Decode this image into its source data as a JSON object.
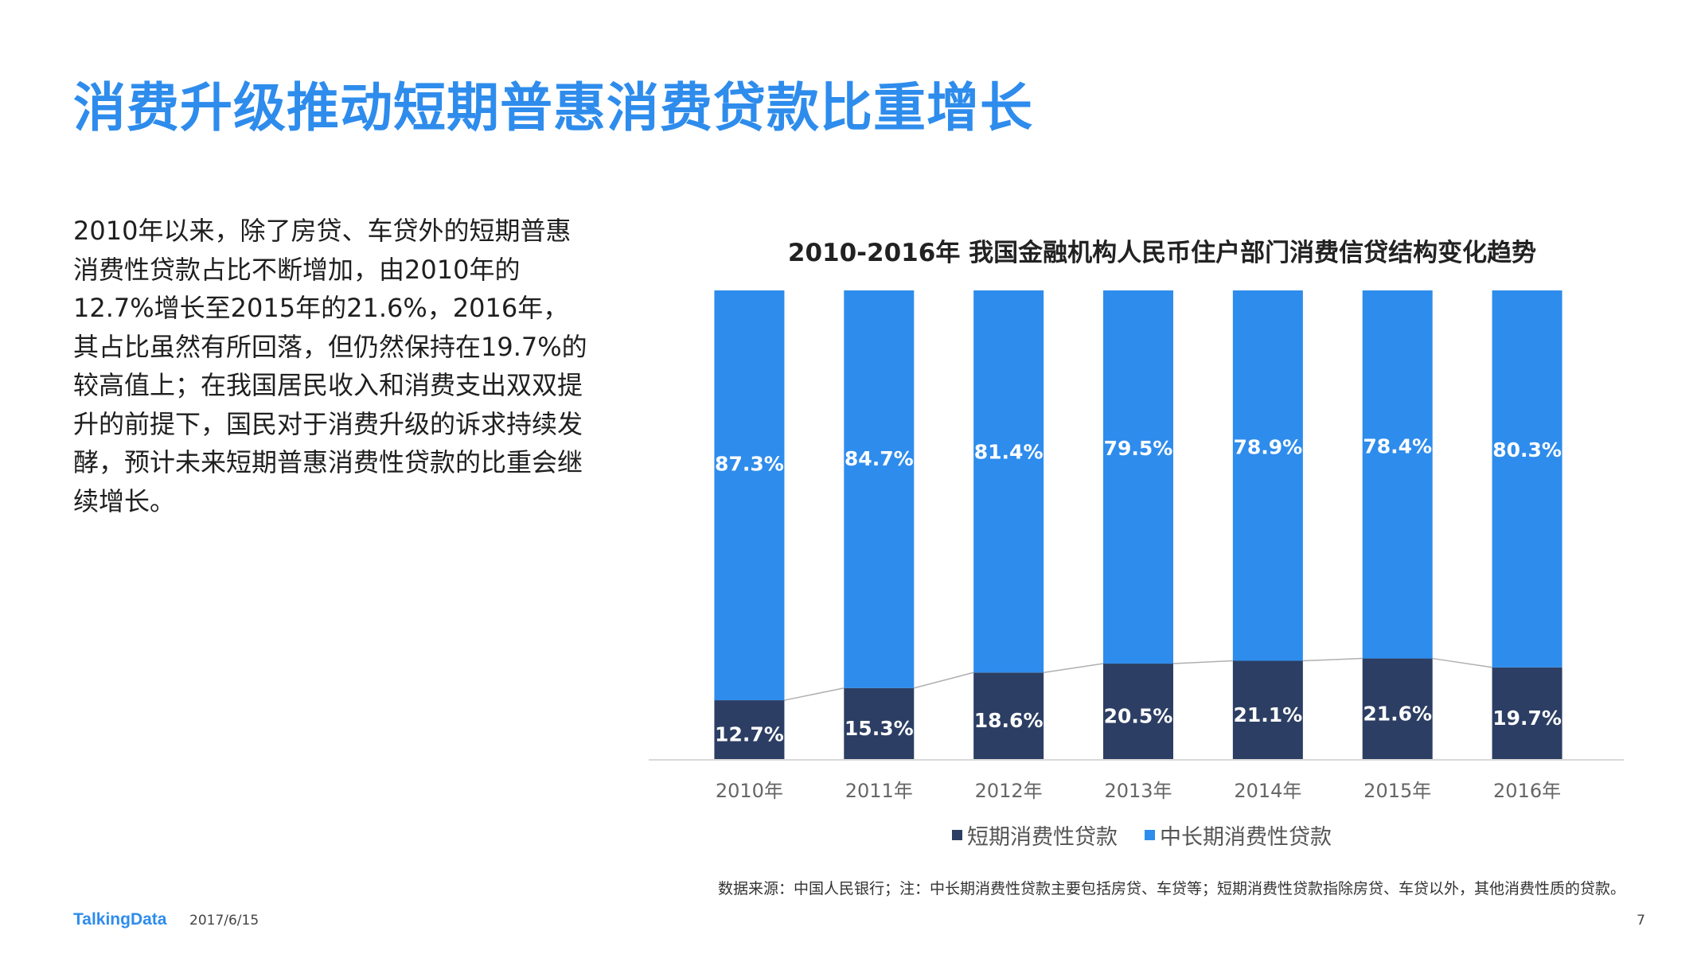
{
  "slide": {
    "title": "消费升级推动短期普惠消费贷款比重增长",
    "body": "2010年以来，除了房贷、车贷外的短期普惠消费性贷款占比不断增加，由2010年的12.7%增长至2015年的21.6%，2016年，其占比虽然有所回落，但仍然保持在19.7%的较高值上；在我国居民收入和消费支出双双提升的前提下，国民对于消费升级的诉求持续发酵，预计未来短期普惠消费性贷款的比重会继续增长。",
    "source_note": "数据来源：中国人民银行；注：中长期消费性贷款主要包括房贷、车贷等；短期消费性贷款指除房贷、车贷以外，其他消费性质的贷款。"
  },
  "footer": {
    "logo": "TalkingData",
    "date": "2017/6/15",
    "page": "7"
  },
  "colors": {
    "title": "#2e8cec",
    "short_term": "#2c3e63",
    "long_term": "#2e8cec",
    "connector": "#b0b0b0"
  },
  "chart_data": {
    "type": "bar",
    "stacked": true,
    "percent_stacked": true,
    "title": "2010-2016年 我国金融机构人民币住户部门消费信贷结构变化趋势",
    "categories": [
      "2010年",
      "2011年",
      "2012年",
      "2013年",
      "2014年",
      "2015年",
      "2016年"
    ],
    "series": [
      {
        "name": "短期消费性贷款",
        "values": [
          12.7,
          15.3,
          18.6,
          20.5,
          21.1,
          21.6,
          19.7
        ],
        "labels": [
          "12.7%",
          "15.3%",
          "18.6%",
          "20.5%",
          "21.1%",
          "21.6%",
          "19.7%"
        ],
        "color": "#2c3e63"
      },
      {
        "name": "中长期消费性贷款",
        "values": [
          87.3,
          84.7,
          81.4,
          79.5,
          78.9,
          78.4,
          80.3
        ],
        "labels": [
          "87.3%",
          "84.7%",
          "81.4%",
          "79.5%",
          "78.9%",
          "78.4%",
          "80.3%"
        ],
        "color": "#2e8cec"
      }
    ],
    "ylim": [
      0,
      100
    ],
    "legend_position": "bottom",
    "series_lines": true
  }
}
